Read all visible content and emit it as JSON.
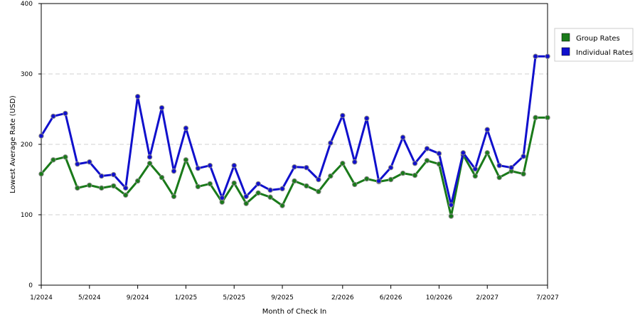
{
  "chart_data": {
    "type": "line",
    "xlabel": "Month of Check In",
    "ylabel": "Lowest Average Rate (USD)",
    "ylim": [
      0,
      400
    ],
    "yticks": [
      0,
      100,
      200,
      300,
      400
    ],
    "x_tick_labels": [
      "1/2024",
      "5/2024",
      "9/2024",
      "1/2025",
      "5/2025",
      "9/2025",
      "2/2026",
      "6/2026",
      "10/2026",
      "2/2027",
      "7/2027"
    ],
    "x": [
      "2024-01",
      "2024-02",
      "2024-03",
      "2024-04",
      "2024-05",
      "2024-06",
      "2024-07",
      "2024-08",
      "2024-09",
      "2024-10",
      "2024-11",
      "2024-12",
      "2025-01",
      "2025-02",
      "2025-03",
      "2025-04",
      "2025-05",
      "2025-06",
      "2025-07",
      "2025-08",
      "2025-09",
      "2025-10",
      "2025-11",
      "2025-12",
      "2026-01",
      "2026-02",
      "2026-03",
      "2026-04",
      "2026-05",
      "2026-06",
      "2026-07",
      "2026-08",
      "2026-09",
      "2026-10",
      "2026-11",
      "2026-12",
      "2027-01",
      "2027-02",
      "2027-03",
      "2027-04",
      "2027-05",
      "2027-06",
      "2027-07"
    ],
    "grid": "horizontal dashed",
    "legend_position": "right",
    "series": [
      {
        "name": "Group Rates",
        "color": "#1a7a1a",
        "values": [
          158,
          178,
          182,
          138,
          142,
          138,
          141,
          128,
          148,
          173,
          153,
          126,
          178,
          140,
          144,
          118,
          145,
          116,
          131,
          125,
          113,
          148,
          141,
          133,
          155,
          173,
          143,
          151,
          147,
          150,
          159,
          156,
          177,
          172,
          98,
          185,
          155,
          188,
          153,
          162,
          158,
          238,
          238
        ]
      },
      {
        "name": "Individual Rates",
        "color": "#1010cc",
        "values": [
          212,
          240,
          244,
          172,
          175,
          155,
          157,
          138,
          268,
          182,
          252,
          162,
          223,
          166,
          170,
          124,
          170,
          126,
          144,
          135,
          137,
          168,
          167,
          150,
          202,
          241,
          175,
          237,
          148,
          167,
          210,
          173,
          194,
          187,
          114,
          188,
          165,
          221,
          170,
          167,
          183,
          325,
          325
        ]
      }
    ]
  }
}
